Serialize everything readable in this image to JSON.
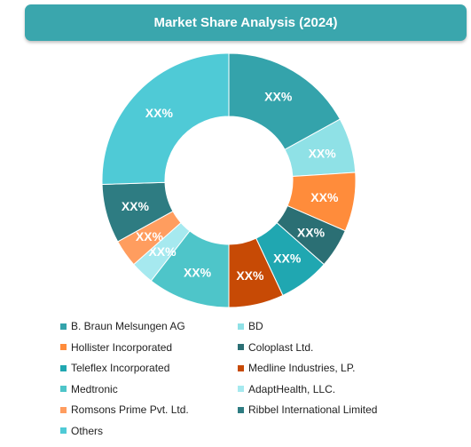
{
  "chart_data": {
    "type": "pie",
    "title": "Market Share Analysis (2024)",
    "slice_label": "XX%",
    "series": [
      {
        "name": "B. Braun Melsungen AG",
        "value": 17.0,
        "color": "#34a3ab"
      },
      {
        "name": "BD",
        "value": 7.0,
        "color": "#8fe1e6"
      },
      {
        "name": "Hollister Incorporated",
        "value": 7.5,
        "color": "#ff8c3b"
      },
      {
        "name": "Coloplast Ltd.",
        "value": 5.0,
        "color": "#2b6f74"
      },
      {
        "name": "Teleflex Incorporated",
        "value": 6.5,
        "color": "#20a7b1"
      },
      {
        "name": "Medline Industries, LP.",
        "value": 7.0,
        "color": "#c74a05"
      },
      {
        "name": "Medtronic",
        "value": 10.5,
        "color": "#4ec5c9"
      },
      {
        "name": "AdaptHealth, LLC.",
        "value": 3.0,
        "color": "#a6e9ef"
      },
      {
        "name": "Romsons Prime Pvt. Ltd.",
        "value": 3.5,
        "color": "#ff9d5f"
      },
      {
        "name": "Ribbel International Limited",
        "value": 7.5,
        "color": "#2e7c82"
      },
      {
        "name": "Others",
        "value": 25.5,
        "color": "#4fcad6"
      }
    ],
    "legend_position": "bottom"
  }
}
